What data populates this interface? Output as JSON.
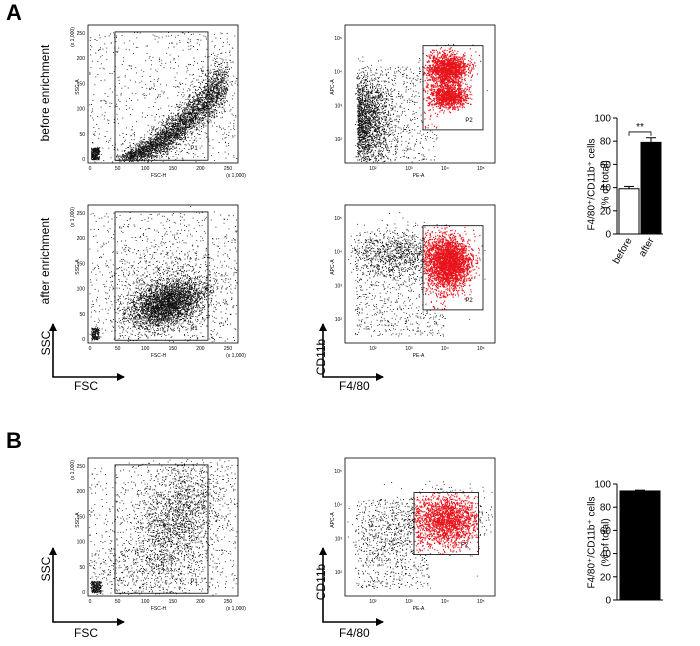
{
  "panels": {
    "a": "A",
    "b": "B"
  },
  "rows": {
    "before": "before enrichment",
    "after": "after enrichment"
  },
  "scatter_labels": {
    "fsc_ssc": {
      "x_axis": "FSC-H",
      "y_axis": "SSC-A",
      "gate": "P1",
      "scale": "(x 1,000)",
      "x_ticks": [
        "0",
        "50",
        "100",
        "150",
        "200",
        "250"
      ],
      "y_ticks": [
        "0",
        "50",
        "100",
        "150",
        "200",
        "250"
      ]
    },
    "pe_apc": {
      "x_axis": "PE-A",
      "y_axis": "APC-A",
      "gate": "P2",
      "x_ticks": [
        "10²",
        "10³",
        "10⁴",
        "10⁵"
      ],
      "y_ticks": [
        "10²",
        "10³",
        "10⁴",
        "10⁵"
      ]
    }
  },
  "arrows": {
    "ssc": "SSC",
    "fsc": "FSC",
    "cd11b": "CD11b",
    "f480": "F4/80"
  },
  "significance": "**",
  "chart_data": [
    {
      "type": "bar",
      "panel": "A",
      "categories": [
        "before",
        "after"
      ],
      "values": [
        39,
        79
      ],
      "errors": [
        2,
        4
      ],
      "colors": [
        "#ffffff",
        "#000000"
      ],
      "title": "",
      "xlabel": "",
      "ylabel_line1": "F4/80⁺/CD11b⁺ cells",
      "ylabel_line2": "(% of total)",
      "ylim": [
        0,
        100
      ],
      "yticks": [
        0,
        20,
        40,
        60,
        80,
        100
      ]
    },
    {
      "type": "bar",
      "panel": "B",
      "categories": [
        ""
      ],
      "values": [
        94
      ],
      "errors": [
        0.7
      ],
      "colors": [
        "#000000"
      ],
      "title": "",
      "xlabel": "",
      "ylabel_line1": "F4/80⁺/CD11b⁺ cells",
      "ylabel_line2": "(% of total)",
      "ylim": [
        0,
        100
      ],
      "yticks": [
        0,
        20,
        40,
        60,
        80,
        100
      ]
    }
  ]
}
